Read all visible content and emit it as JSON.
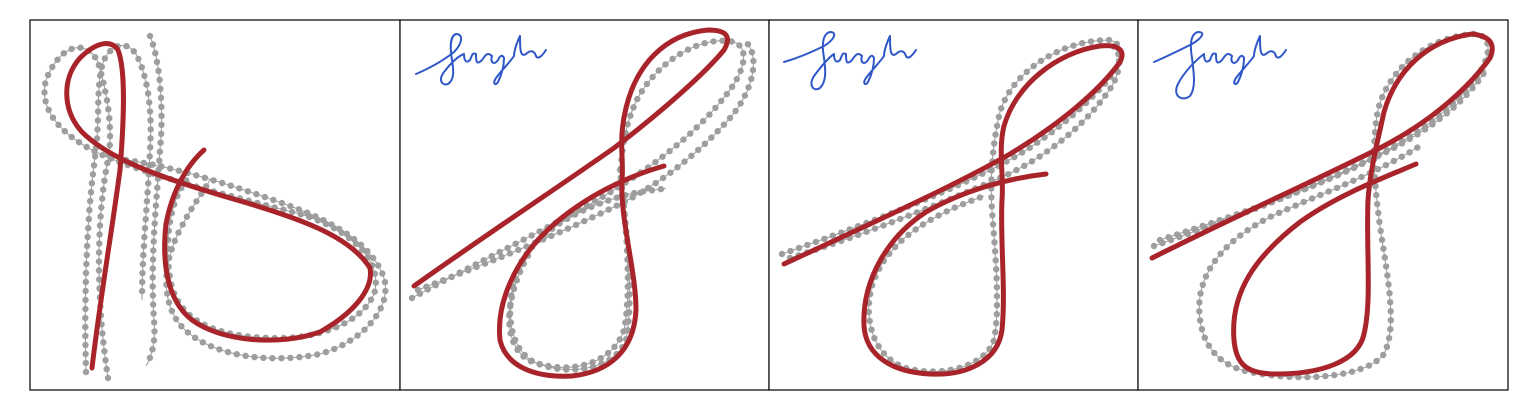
{
  "figure": {
    "panel_count": 4,
    "colors": {
      "red_stroke": "#a8242a",
      "gray_track": "#9b9b9b",
      "gray_dot": "#9e9e9e",
      "signature_ink": "#2f57c8",
      "frame": "#000000",
      "background": "#ffffff"
    },
    "panels": [
      {
        "id": "panel-1",
        "has_signature": false
      },
      {
        "id": "panel-2",
        "has_signature": true
      },
      {
        "id": "panel-3",
        "has_signature": true
      },
      {
        "id": "panel-4",
        "has_signature": true
      }
    ]
  }
}
